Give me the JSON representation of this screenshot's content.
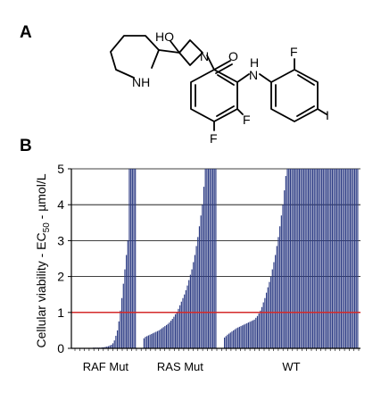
{
  "panel_labels": {
    "a": "A",
    "b": "B"
  },
  "structure": {
    "atoms": {
      "ho": "HO",
      "n_amide": "N",
      "nh_piperidine": "NH",
      "o": "O",
      "n_aniline": "N",
      "h_aniline": "H",
      "f_ortho": "F",
      "f_ring": "F",
      "f_para": "F",
      "iodo": "I"
    }
  },
  "colors": {
    "bars": "#2b3a83",
    "threshold": "#d42a2a",
    "grid": "#000000",
    "axes": "#000000"
  },
  "chart_data": {
    "type": "bar",
    "ylabel_prefix": "Cellular viability - EC",
    "ylabel_sub": "50",
    "ylabel_suffix": " - µmol/L",
    "ylim": [
      0,
      5
    ],
    "yticks": [
      "0",
      "1",
      "2",
      "3",
      "4",
      "5"
    ],
    "grid": true,
    "threshold": 1,
    "groups": [
      {
        "label": "RAF Mut",
        "values": [
          0.01,
          0.01,
          0.01,
          0.01,
          0.01,
          0.01,
          0.01,
          0.01,
          0.01,
          0.01,
          0.01,
          0.01,
          0.02,
          0.02,
          0.02,
          0.02,
          0.02,
          0.02,
          0.03,
          0.03,
          0.04,
          0.05,
          0.06,
          0.08,
          0.1,
          0.14,
          0.22,
          0.35,
          0.5,
          0.75,
          1.05,
          1.4,
          1.8,
          2.2,
          2.6,
          3.0,
          5,
          5,
          5,
          5,
          5
        ]
      },
      {
        "label": "RAS Mut",
        "values": [
          0.28,
          0.32,
          0.34,
          0.36,
          0.38,
          0.4,
          0.42,
          0.44,
          0.46,
          0.48,
          0.5,
          0.53,
          0.56,
          0.59,
          0.62,
          0.65,
          0.68,
          0.72,
          0.77,
          0.82,
          0.88,
          0.95,
          1.02,
          1.1,
          1.2,
          1.3,
          1.4,
          1.5,
          1.62,
          1.75,
          1.9,
          2.05,
          2.2,
          2.4,
          2.6,
          2.85,
          3.1,
          3.4,
          3.7,
          4.0,
          4.5,
          5,
          5,
          5,
          5,
          5,
          5,
          5,
          5
        ]
      },
      {
        "label": "WT",
        "values": [
          0.3,
          0.34,
          0.38,
          0.41,
          0.44,
          0.47,
          0.5,
          0.53,
          0.56,
          0.58,
          0.6,
          0.62,
          0.64,
          0.66,
          0.68,
          0.7,
          0.72,
          0.74,
          0.76,
          0.78,
          0.8,
          0.85,
          0.9,
          0.97,
          1.05,
          1.15,
          1.28,
          1.4,
          1.55,
          1.7,
          1.85,
          2.0,
          2.2,
          2.4,
          2.6,
          2.85,
          3.1,
          3.4,
          3.7,
          4.0,
          4.4,
          4.8,
          5,
          5,
          5,
          5,
          5,
          5,
          5,
          5,
          5,
          5,
          5,
          5,
          5,
          5,
          5,
          5,
          5,
          5,
          5,
          5,
          5,
          5,
          5,
          5,
          5,
          5,
          5,
          5,
          5,
          5,
          5,
          5,
          5,
          5,
          5,
          5,
          5,
          5,
          5,
          5,
          5,
          5,
          5,
          5,
          5,
          5,
          5,
          5
        ]
      }
    ]
  }
}
